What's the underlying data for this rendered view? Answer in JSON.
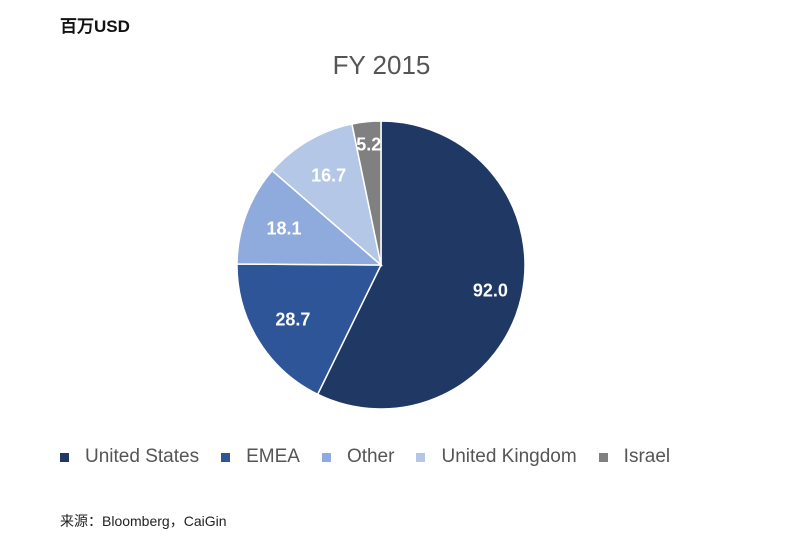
{
  "unit_label": "百万USD",
  "source": "来源：Bloomberg，CaiGin",
  "chart_data": {
    "type": "pie",
    "title": "FY 2015",
    "unit": "百万USD",
    "slices": [
      {
        "label": "United States",
        "value": 92.0,
        "display": "92.0",
        "color": "#1f3864"
      },
      {
        "label": "EMEA",
        "value": 28.7,
        "display": "28.7",
        "color": "#2e5597"
      },
      {
        "label": "Other",
        "value": 18.1,
        "display": "18.1",
        "color": "#8faadc"
      },
      {
        "label": "United Kingdom",
        "value": 16.7,
        "display": "16.7",
        "color": "#b4c7e7"
      },
      {
        "label": "Israel",
        "value": 5.2,
        "display": "5.2",
        "color": "#808080"
      }
    ],
    "legend_position": "bottom",
    "label_color": "#ffffff"
  }
}
